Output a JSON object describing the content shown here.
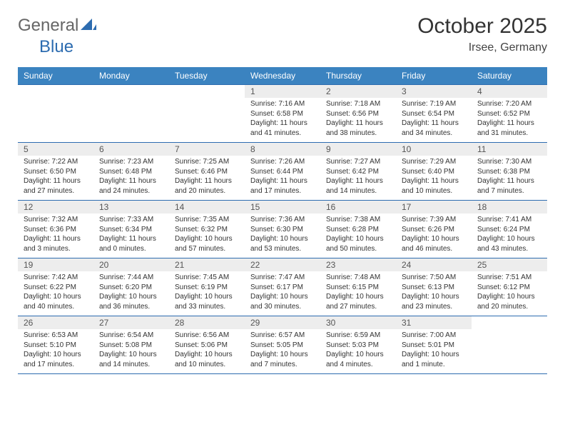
{
  "logo": {
    "general": "General",
    "blue": "Blue"
  },
  "title": "October 2025",
  "location": "Irsee, Germany",
  "header_bg": "#3b83c0",
  "border_color": "#2d6cb0",
  "daynum_bg": "#ededed",
  "dayNames": [
    "Sunday",
    "Monday",
    "Tuesday",
    "Wednesday",
    "Thursday",
    "Friday",
    "Saturday"
  ],
  "weeks": [
    [
      null,
      null,
      null,
      {
        "n": "1",
        "sr": "Sunrise: 7:16 AM",
        "ss": "Sunset: 6:58 PM",
        "dl": "Daylight: 11 hours and 41 minutes."
      },
      {
        "n": "2",
        "sr": "Sunrise: 7:18 AM",
        "ss": "Sunset: 6:56 PM",
        "dl": "Daylight: 11 hours and 38 minutes."
      },
      {
        "n": "3",
        "sr": "Sunrise: 7:19 AM",
        "ss": "Sunset: 6:54 PM",
        "dl": "Daylight: 11 hours and 34 minutes."
      },
      {
        "n": "4",
        "sr": "Sunrise: 7:20 AM",
        "ss": "Sunset: 6:52 PM",
        "dl": "Daylight: 11 hours and 31 minutes."
      }
    ],
    [
      {
        "n": "5",
        "sr": "Sunrise: 7:22 AM",
        "ss": "Sunset: 6:50 PM",
        "dl": "Daylight: 11 hours and 27 minutes."
      },
      {
        "n": "6",
        "sr": "Sunrise: 7:23 AM",
        "ss": "Sunset: 6:48 PM",
        "dl": "Daylight: 11 hours and 24 minutes."
      },
      {
        "n": "7",
        "sr": "Sunrise: 7:25 AM",
        "ss": "Sunset: 6:46 PM",
        "dl": "Daylight: 11 hours and 20 minutes."
      },
      {
        "n": "8",
        "sr": "Sunrise: 7:26 AM",
        "ss": "Sunset: 6:44 PM",
        "dl": "Daylight: 11 hours and 17 minutes."
      },
      {
        "n": "9",
        "sr": "Sunrise: 7:27 AM",
        "ss": "Sunset: 6:42 PM",
        "dl": "Daylight: 11 hours and 14 minutes."
      },
      {
        "n": "10",
        "sr": "Sunrise: 7:29 AM",
        "ss": "Sunset: 6:40 PM",
        "dl": "Daylight: 11 hours and 10 minutes."
      },
      {
        "n": "11",
        "sr": "Sunrise: 7:30 AM",
        "ss": "Sunset: 6:38 PM",
        "dl": "Daylight: 11 hours and 7 minutes."
      }
    ],
    [
      {
        "n": "12",
        "sr": "Sunrise: 7:32 AM",
        "ss": "Sunset: 6:36 PM",
        "dl": "Daylight: 11 hours and 3 minutes."
      },
      {
        "n": "13",
        "sr": "Sunrise: 7:33 AM",
        "ss": "Sunset: 6:34 PM",
        "dl": "Daylight: 11 hours and 0 minutes."
      },
      {
        "n": "14",
        "sr": "Sunrise: 7:35 AM",
        "ss": "Sunset: 6:32 PM",
        "dl": "Daylight: 10 hours and 57 minutes."
      },
      {
        "n": "15",
        "sr": "Sunrise: 7:36 AM",
        "ss": "Sunset: 6:30 PM",
        "dl": "Daylight: 10 hours and 53 minutes."
      },
      {
        "n": "16",
        "sr": "Sunrise: 7:38 AM",
        "ss": "Sunset: 6:28 PM",
        "dl": "Daylight: 10 hours and 50 minutes."
      },
      {
        "n": "17",
        "sr": "Sunrise: 7:39 AM",
        "ss": "Sunset: 6:26 PM",
        "dl": "Daylight: 10 hours and 46 minutes."
      },
      {
        "n": "18",
        "sr": "Sunrise: 7:41 AM",
        "ss": "Sunset: 6:24 PM",
        "dl": "Daylight: 10 hours and 43 minutes."
      }
    ],
    [
      {
        "n": "19",
        "sr": "Sunrise: 7:42 AM",
        "ss": "Sunset: 6:22 PM",
        "dl": "Daylight: 10 hours and 40 minutes."
      },
      {
        "n": "20",
        "sr": "Sunrise: 7:44 AM",
        "ss": "Sunset: 6:20 PM",
        "dl": "Daylight: 10 hours and 36 minutes."
      },
      {
        "n": "21",
        "sr": "Sunrise: 7:45 AM",
        "ss": "Sunset: 6:19 PM",
        "dl": "Daylight: 10 hours and 33 minutes."
      },
      {
        "n": "22",
        "sr": "Sunrise: 7:47 AM",
        "ss": "Sunset: 6:17 PM",
        "dl": "Daylight: 10 hours and 30 minutes."
      },
      {
        "n": "23",
        "sr": "Sunrise: 7:48 AM",
        "ss": "Sunset: 6:15 PM",
        "dl": "Daylight: 10 hours and 27 minutes."
      },
      {
        "n": "24",
        "sr": "Sunrise: 7:50 AM",
        "ss": "Sunset: 6:13 PM",
        "dl": "Daylight: 10 hours and 23 minutes."
      },
      {
        "n": "25",
        "sr": "Sunrise: 7:51 AM",
        "ss": "Sunset: 6:12 PM",
        "dl": "Daylight: 10 hours and 20 minutes."
      }
    ],
    [
      {
        "n": "26",
        "sr": "Sunrise: 6:53 AM",
        "ss": "Sunset: 5:10 PM",
        "dl": "Daylight: 10 hours and 17 minutes."
      },
      {
        "n": "27",
        "sr": "Sunrise: 6:54 AM",
        "ss": "Sunset: 5:08 PM",
        "dl": "Daylight: 10 hours and 14 minutes."
      },
      {
        "n": "28",
        "sr": "Sunrise: 6:56 AM",
        "ss": "Sunset: 5:06 PM",
        "dl": "Daylight: 10 hours and 10 minutes."
      },
      {
        "n": "29",
        "sr": "Sunrise: 6:57 AM",
        "ss": "Sunset: 5:05 PM",
        "dl": "Daylight: 10 hours and 7 minutes."
      },
      {
        "n": "30",
        "sr": "Sunrise: 6:59 AM",
        "ss": "Sunset: 5:03 PM",
        "dl": "Daylight: 10 hours and 4 minutes."
      },
      {
        "n": "31",
        "sr": "Sunrise: 7:00 AM",
        "ss": "Sunset: 5:01 PM",
        "dl": "Daylight: 10 hours and 1 minute."
      },
      null
    ]
  ]
}
